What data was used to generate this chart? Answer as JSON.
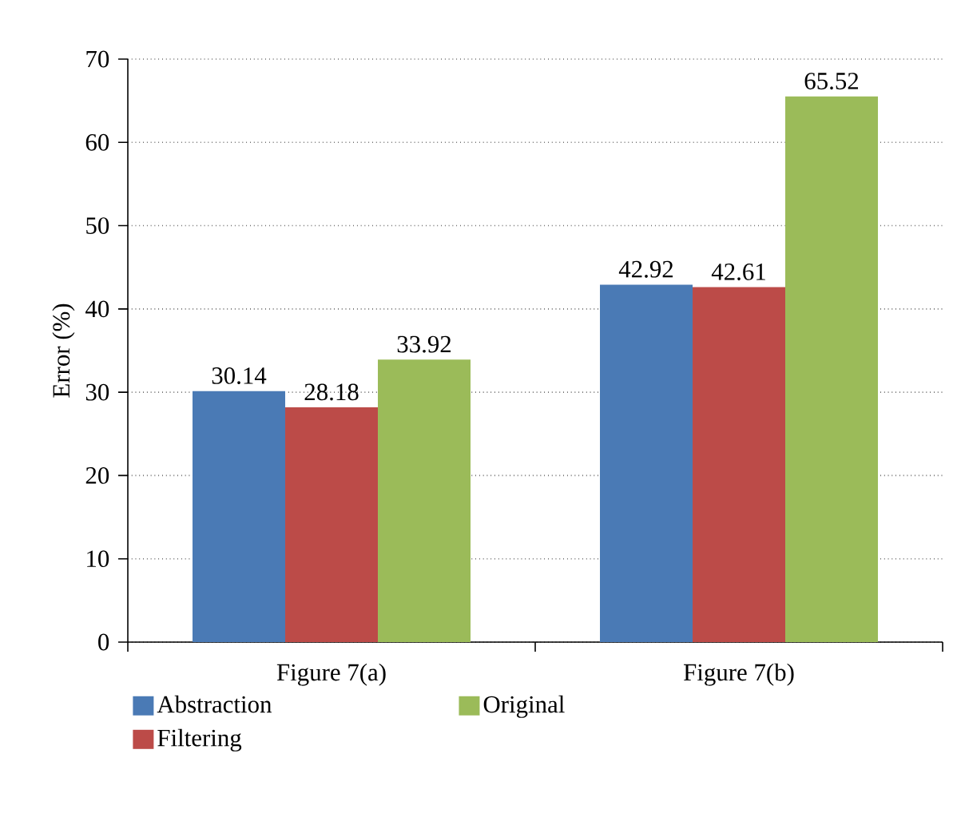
{
  "chart_data": {
    "type": "bar",
    "ylabel": "Error (%)",
    "categories": [
      "Figure 7(a)",
      "Figure 7(b)"
    ],
    "series": [
      {
        "name": "Abstraction",
        "color": "#4a7ab5",
        "values": [
          30.14,
          42.92
        ]
      },
      {
        "name": "Filtering",
        "color": "#bc4b48",
        "values": [
          28.18,
          42.61
        ]
      },
      {
        "name": "Original",
        "color": "#9bbb59",
        "values": [
          33.92,
          65.52
        ]
      }
    ],
    "ylim": [
      0,
      70
    ],
    "yticks": [
      0,
      10,
      20,
      30,
      40,
      50,
      60,
      70
    ],
    "grid": "y",
    "legend": "bottom",
    "data_labels": true
  }
}
